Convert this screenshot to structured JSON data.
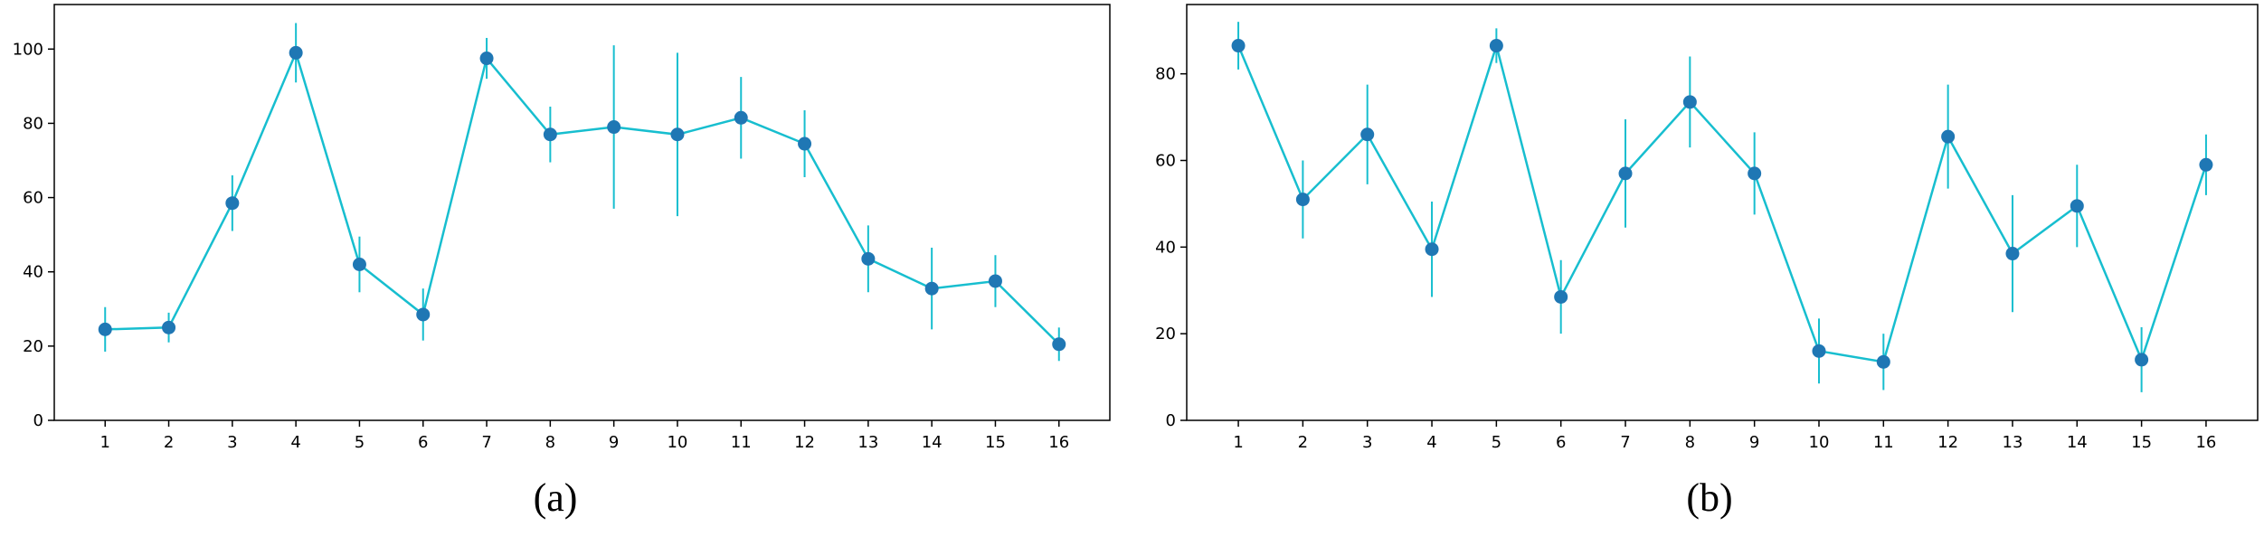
{
  "figure": {
    "captions": [
      "(a)",
      "(b)"
    ],
    "colors": {
      "line": "#17becf",
      "marker": "#1f77b4",
      "errorbar": "#17becf"
    }
  },
  "chart_data": [
    {
      "type": "line",
      "title": "",
      "xlabel": "",
      "ylabel": "",
      "x": [
        1,
        2,
        3,
        4,
        5,
        6,
        7,
        8,
        9,
        10,
        11,
        12,
        13,
        14,
        15,
        16
      ],
      "xticks": [
        "1",
        "2",
        "3",
        "4",
        "5",
        "6",
        "7",
        "8",
        "9",
        "10",
        "11",
        "12",
        "13",
        "14",
        "15",
        "16"
      ],
      "yticks": [
        "0",
        "20",
        "40",
        "60",
        "80",
        "100"
      ],
      "xlim": [
        0.2,
        16.8
      ],
      "ylim": [
        0,
        112
      ],
      "grid": false,
      "series": [
        {
          "values": [
            24.5,
            25,
            58.5,
            99,
            42,
            28.5,
            97.5,
            77,
            79,
            77,
            81.5,
            74.5,
            43.5,
            35.5,
            37.5,
            20.5
          ],
          "error": [
            6,
            4,
            7.5,
            8,
            7.5,
            7,
            5.5,
            7.5,
            22,
            22,
            11,
            9,
            9,
            11,
            7,
            4.5
          ]
        }
      ]
    },
    {
      "type": "line",
      "title": "",
      "xlabel": "",
      "ylabel": "",
      "x": [
        1,
        2,
        3,
        4,
        5,
        6,
        7,
        8,
        9,
        10,
        11,
        12,
        13,
        14,
        15,
        16
      ],
      "xticks": [
        "1",
        "2",
        "3",
        "4",
        "5",
        "6",
        "7",
        "8",
        "9",
        "10",
        "11",
        "12",
        "13",
        "14",
        "15",
        "16"
      ],
      "yticks": [
        "0",
        "20",
        "40",
        "60",
        "80"
      ],
      "xlim": [
        0.2,
        16.8
      ],
      "ylim": [
        0,
        96
      ],
      "grid": false,
      "series": [
        {
          "values": [
            86.5,
            51,
            66,
            39.5,
            86.5,
            28.5,
            57,
            73.5,
            57,
            16,
            13.5,
            65.5,
            38.5,
            49.5,
            14,
            59
          ],
          "error": [
            5.5,
            9,
            11.5,
            11,
            4,
            8.5,
            12.5,
            10.5,
            9.5,
            7.5,
            6.5,
            12,
            13.5,
            9.5,
            7.5,
            7
          ]
        }
      ]
    }
  ]
}
